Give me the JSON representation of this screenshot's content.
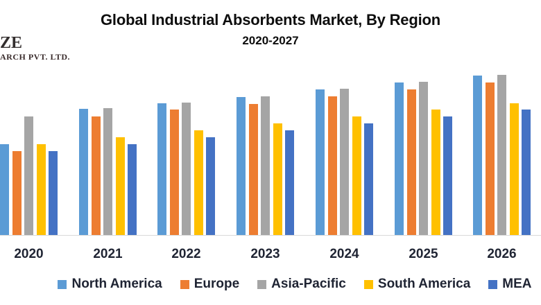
{
  "logo": {
    "line1": "ZE",
    "line2": "ARCH PVT. LTD."
  },
  "header": {
    "title": "Global Industrial Absorbents Market, By Region",
    "subtitle": "2020-2027"
  },
  "chart_data": {
    "type": "bar",
    "title": "Global Industrial Absorbents Market, By Region",
    "subtitle": "2020-2027",
    "categories": [
      "2020",
      "2021",
      "2022",
      "2023",
      "2024",
      "2025",
      "2026"
    ],
    "series": [
      {
        "name": "North America",
        "color": "#5B9BD5",
        "values": [
          131,
          182,
          190,
          199,
          210,
          220,
          230
        ]
      },
      {
        "name": "Europe",
        "color": "#ED7D31",
        "values": [
          121,
          171,
          181,
          189,
          200,
          210,
          220
        ]
      },
      {
        "name": "Asia-Pacific",
        "color": "#A5A5A5",
        "values": [
          171,
          183,
          191,
          200,
          211,
          221,
          231
        ]
      },
      {
        "name": "South America",
        "color": "#FFC000",
        "values": [
          131,
          141,
          151,
          161,
          171,
          181,
          190
        ]
      },
      {
        "name": "MEA",
        "color": "#4472C4",
        "values": [
          121,
          131,
          141,
          151,
          161,
          171,
          181
        ]
      }
    ],
    "xlabel": "",
    "ylabel": "",
    "value_unit": "relative bar height in pixels (no y-axis or gridlines shown in chart)",
    "grid": false,
    "legend_position": "bottom",
    "axis_line_color": "#D9D9D9",
    "tick_label_color": "#1F2433",
    "title_color": "#0D0D0D"
  }
}
